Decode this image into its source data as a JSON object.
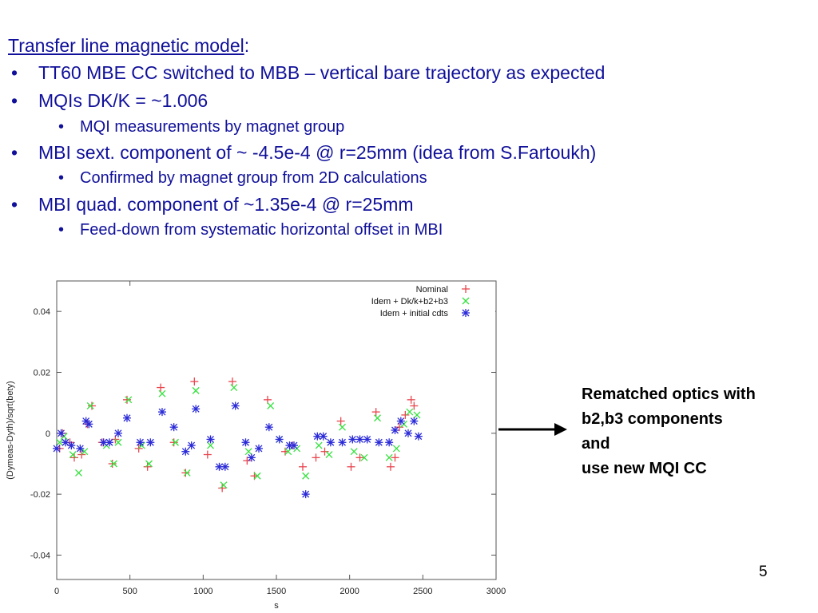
{
  "slide": {
    "heading": "Transfer line magnetic model",
    "heading_colon": ":",
    "bullets": [
      {
        "level": 1,
        "text": "TT60 MBE CC switched to MBB – vertical bare trajectory as expected"
      },
      {
        "level": 1,
        "text": "MQIs DK/K = ~1.006"
      },
      {
        "level": 2,
        "text": "MQI measurements by magnet group"
      },
      {
        "level": 1,
        "text": "MBI sext. component of ~ -4.5e-4 @ r=25mm (idea from S.Fartoukh)"
      },
      {
        "level": 2,
        "text": "Confirmed by magnet group from 2D calculations"
      },
      {
        "level": 1,
        "text": "MBI quad. component  of ~1.35e-4 @ r=25mm"
      },
      {
        "level": 2,
        "text": "Feed-down from systematic horizontal offset in MBI"
      }
    ],
    "bullet_char": "•",
    "side_note": [
      "Rematched optics with",
      "b2,b3 components",
      "and",
      "use new MQI CC"
    ],
    "page_number": "5"
  },
  "colors": {
    "text": "#10109a",
    "nominal": "#e8474f",
    "dk": "#33e23c",
    "initial": "#2a2ad8"
  },
  "chart_data": {
    "type": "scatter",
    "xlabel": "s",
    "ylabel": "(Dymeas-Dyth)/sqrt(bety)",
    "xlim": [
      0,
      3000
    ],
    "ylim": [
      -0.048,
      0.05
    ],
    "xticks": [
      0,
      500,
      1000,
      1500,
      2000,
      2500,
      3000
    ],
    "yticks": [
      -0.04,
      -0.02,
      0,
      0.02,
      0.04
    ],
    "ytick_labels": [
      "-0.04",
      "-0.02",
      "0",
      "0.02",
      "0.04"
    ],
    "grid": false,
    "legend": "top-right",
    "series": [
      {
        "name": "Nominal",
        "marker": "plus",
        "color": "#e8474f",
        "points": [
          [
            20,
            -0.005
          ],
          [
            40,
            0
          ],
          [
            90,
            -0.003
          ],
          [
            120,
            -0.008
          ],
          [
            170,
            -0.007
          ],
          [
            210,
            0.003
          ],
          [
            240,
            0.009
          ],
          [
            310,
            -0.003
          ],
          [
            380,
            -0.01
          ],
          [
            400,
            -0.002
          ],
          [
            480,
            0.011
          ],
          [
            560,
            -0.005
          ],
          [
            620,
            -0.011
          ],
          [
            710,
            0.015
          ],
          [
            800,
            -0.003
          ],
          [
            880,
            -0.013
          ],
          [
            940,
            0.017
          ],
          [
            1030,
            -0.007
          ],
          [
            1130,
            -0.018
          ],
          [
            1200,
            0.017
          ],
          [
            1300,
            -0.009
          ],
          [
            1350,
            -0.014
          ],
          [
            1440,
            0.011
          ],
          [
            1560,
            -0.006
          ],
          [
            1610,
            -0.004
          ],
          [
            1680,
            -0.011
          ],
          [
            1770,
            -0.008
          ],
          [
            1830,
            -0.006
          ],
          [
            1940,
            0.004
          ],
          [
            2010,
            -0.011
          ],
          [
            2070,
            -0.008
          ],
          [
            2180,
            0.007
          ],
          [
            2280,
            -0.011
          ],
          [
            2310,
            -0.008
          ],
          [
            2340,
            0.002
          ],
          [
            2380,
            0.006
          ],
          [
            2420,
            0.011
          ],
          [
            2440,
            0.009
          ]
        ]
      },
      {
        "name": "Idem + Dk/k+b2+b3",
        "marker": "cross",
        "color": "#33e23c",
        "points": [
          [
            20,
            -0.003
          ],
          [
            50,
            -0.001
          ],
          [
            110,
            -0.007
          ],
          [
            150,
            -0.013
          ],
          [
            190,
            -0.006
          ],
          [
            230,
            0.009
          ],
          [
            340,
            -0.004
          ],
          [
            390,
            -0.01
          ],
          [
            420,
            -0.003
          ],
          [
            490,
            0.011
          ],
          [
            580,
            -0.004
          ],
          [
            630,
            -0.01
          ],
          [
            720,
            0.013
          ],
          [
            810,
            -0.003
          ],
          [
            890,
            -0.013
          ],
          [
            950,
            0.014
          ],
          [
            1050,
            -0.004
          ],
          [
            1140,
            -0.017
          ],
          [
            1210,
            0.015
          ],
          [
            1310,
            -0.006
          ],
          [
            1370,
            -0.014
          ],
          [
            1460,
            0.009
          ],
          [
            1520,
            -0.002
          ],
          [
            1580,
            -0.006
          ],
          [
            1640,
            -0.005
          ],
          [
            1700,
            -0.014
          ],
          [
            1790,
            -0.004
          ],
          [
            1860,
            -0.007
          ],
          [
            1950,
            0.002
          ],
          [
            2030,
            -0.006
          ],
          [
            2100,
            -0.008
          ],
          [
            2190,
            0.005
          ],
          [
            2270,
            -0.008
          ],
          [
            2320,
            -0.005
          ],
          [
            2370,
            0.003
          ],
          [
            2410,
            0.007
          ],
          [
            2460,
            0.006
          ]
        ]
      },
      {
        "name": "Idem + initial cdts",
        "marker": "star",
        "color": "#2a2ad8",
        "points": [
          [
            0,
            -0.005
          ],
          [
            30,
            0
          ],
          [
            60,
            -0.003
          ],
          [
            100,
            -0.004
          ],
          [
            160,
            -0.005
          ],
          [
            200,
            0.004
          ],
          [
            220,
            0.003
          ],
          [
            320,
            -0.003
          ],
          [
            360,
            -0.003
          ],
          [
            420,
            0
          ],
          [
            480,
            0.005
          ],
          [
            570,
            -0.003
          ],
          [
            640,
            -0.003
          ],
          [
            720,
            0.007
          ],
          [
            800,
            0.002
          ],
          [
            880,
            -0.006
          ],
          [
            920,
            -0.004
          ],
          [
            950,
            0.008
          ],
          [
            1050,
            -0.002
          ],
          [
            1110,
            -0.011
          ],
          [
            1150,
            -0.011
          ],
          [
            1220,
            0.009
          ],
          [
            1290,
            -0.003
          ],
          [
            1330,
            -0.008
          ],
          [
            1380,
            -0.005
          ],
          [
            1450,
            0.002
          ],
          [
            1520,
            -0.002
          ],
          [
            1590,
            -0.004
          ],
          [
            1620,
            -0.004
          ],
          [
            1700,
            -0.02
          ],
          [
            1780,
            -0.001
          ],
          [
            1820,
            -0.001
          ],
          [
            1870,
            -0.003
          ],
          [
            1950,
            -0.003
          ],
          [
            2020,
            -0.002
          ],
          [
            2070,
            -0.002
          ],
          [
            2120,
            -0.002
          ],
          [
            2200,
            -0.003
          ],
          [
            2270,
            -0.003
          ],
          [
            2310,
            0.001
          ],
          [
            2350,
            0.004
          ],
          [
            2400,
            0
          ],
          [
            2440,
            0.004
          ],
          [
            2470,
            -0.001
          ]
        ]
      }
    ]
  }
}
